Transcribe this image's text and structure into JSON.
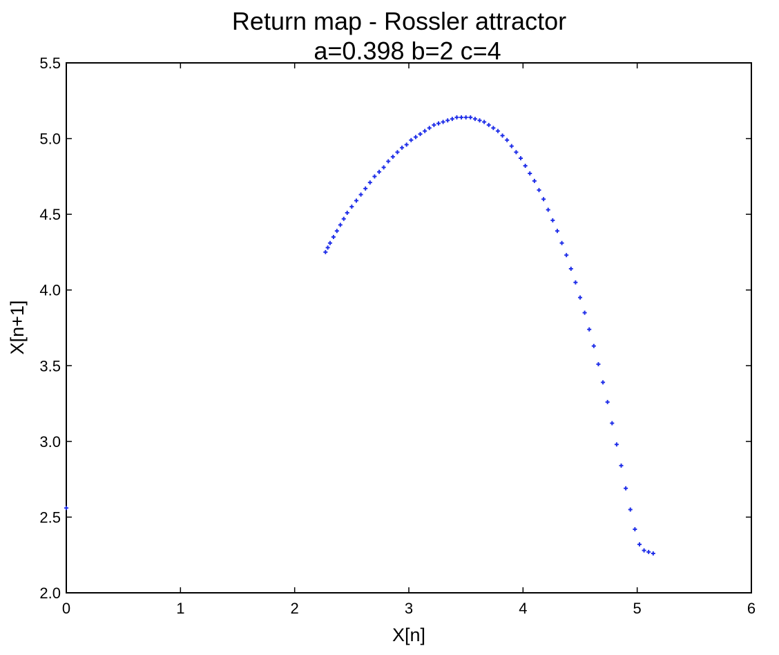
{
  "chart_data": {
    "type": "scatter",
    "title": "Return map - Rossler attractor",
    "subtitle": "a=0.398 b=2 c=4",
    "xlabel": "X[n]",
    "ylabel": "X[n+1]",
    "xlim": [
      0,
      6
    ],
    "ylim": [
      2.0,
      5.5
    ],
    "xticks": [
      "0",
      "1",
      "2",
      "3",
      "4",
      "5",
      "6"
    ],
    "yticks": [
      "2.0",
      "2.5",
      "3.0",
      "3.5",
      "4.0",
      "4.5",
      "5.0",
      "5.5"
    ],
    "grid": false,
    "marker": "+",
    "series": [
      {
        "color": "#1f2ee8",
        "points": [
          [
            0.0,
            2.56
          ],
          [
            2.27,
            4.25
          ],
          [
            2.29,
            4.28
          ],
          [
            2.31,
            4.31
          ],
          [
            2.34,
            4.35
          ],
          [
            2.37,
            4.39
          ],
          [
            2.4,
            4.43
          ],
          [
            2.43,
            4.47
          ],
          [
            2.46,
            4.51
          ],
          [
            2.5,
            4.55
          ],
          [
            2.54,
            4.59
          ],
          [
            2.58,
            4.63
          ],
          [
            2.62,
            4.67
          ],
          [
            2.66,
            4.71
          ],
          [
            2.7,
            4.75
          ],
          [
            2.74,
            4.78
          ],
          [
            2.78,
            4.81
          ],
          [
            2.82,
            4.85
          ],
          [
            2.86,
            4.88
          ],
          [
            2.9,
            4.91
          ],
          [
            2.94,
            4.94
          ],
          [
            2.98,
            4.96
          ],
          [
            3.02,
            4.99
          ],
          [
            3.06,
            5.01
          ],
          [
            3.1,
            5.03
          ],
          [
            3.14,
            5.05
          ],
          [
            3.18,
            5.07
          ],
          [
            3.22,
            5.09
          ],
          [
            3.26,
            5.1
          ],
          [
            3.3,
            5.11
          ],
          [
            3.34,
            5.12
          ],
          [
            3.38,
            5.13
          ],
          [
            3.42,
            5.14
          ],
          [
            3.46,
            5.14
          ],
          [
            3.5,
            5.14
          ],
          [
            3.54,
            5.14
          ],
          [
            3.58,
            5.13
          ],
          [
            3.62,
            5.12
          ],
          [
            3.66,
            5.11
          ],
          [
            3.7,
            5.09
          ],
          [
            3.74,
            5.07
          ],
          [
            3.78,
            5.05
          ],
          [
            3.82,
            5.02
          ],
          [
            3.86,
            4.99
          ],
          [
            3.9,
            4.95
          ],
          [
            3.94,
            4.91
          ],
          [
            3.98,
            4.87
          ],
          [
            4.02,
            4.82
          ],
          [
            4.06,
            4.77
          ],
          [
            4.1,
            4.72
          ],
          [
            4.14,
            4.66
          ],
          [
            4.18,
            4.6
          ],
          [
            4.22,
            4.53
          ],
          [
            4.26,
            4.46
          ],
          [
            4.3,
            4.39
          ],
          [
            4.34,
            4.31
          ],
          [
            4.38,
            4.23
          ],
          [
            4.42,
            4.14
          ],
          [
            4.46,
            4.05
          ],
          [
            4.5,
            3.95
          ],
          [
            4.54,
            3.85
          ],
          [
            4.58,
            3.74
          ],
          [
            4.62,
            3.63
          ],
          [
            4.66,
            3.51
          ],
          [
            4.7,
            3.39
          ],
          [
            4.74,
            3.26
          ],
          [
            4.78,
            3.12
          ],
          [
            4.82,
            2.98
          ],
          [
            4.86,
            2.84
          ],
          [
            4.9,
            2.69
          ],
          [
            4.94,
            2.55
          ],
          [
            4.98,
            2.42
          ],
          [
            5.02,
            2.32
          ],
          [
            5.06,
            2.28
          ],
          [
            5.1,
            2.27
          ],
          [
            5.14,
            2.26
          ]
        ]
      }
    ]
  }
}
